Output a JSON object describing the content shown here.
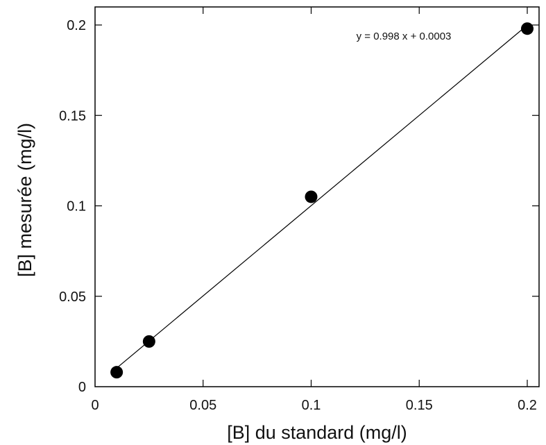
{
  "chart_data": {
    "type": "scatter",
    "title": "",
    "xlabel": "[B] du standard (mg/l)",
    "ylabel": "[B] mesurée (mg/l)",
    "xlim": [
      0,
      0.2
    ],
    "ylim": [
      0,
      0.2
    ],
    "x_ticks": [
      0,
      0.05,
      0.1,
      0.15,
      0.2
    ],
    "x_tick_labels": [
      "0",
      "0.05",
      "0.1",
      "0.15",
      "0.2"
    ],
    "y_ticks": [
      0,
      0.05,
      0.1,
      0.15,
      0.2
    ],
    "y_tick_labels": [
      "0",
      "0.05",
      "0.1",
      "0.15",
      "0.2"
    ],
    "grid": false,
    "series": [
      {
        "type": "scatter",
        "x": [
          0.01,
          0.025,
          0.1,
          0.2
        ],
        "y": [
          0.008,
          0.025,
          0.105,
          0.198
        ]
      }
    ],
    "fit": {
      "type": "line",
      "slope": 0.998,
      "intercept": 0.0003,
      "x_range": [
        0.01,
        0.2
      ]
    },
    "annotation": "y = 0.998 x + 0.0003",
    "colors": {
      "marker": "#000000",
      "line": "#000000"
    }
  }
}
